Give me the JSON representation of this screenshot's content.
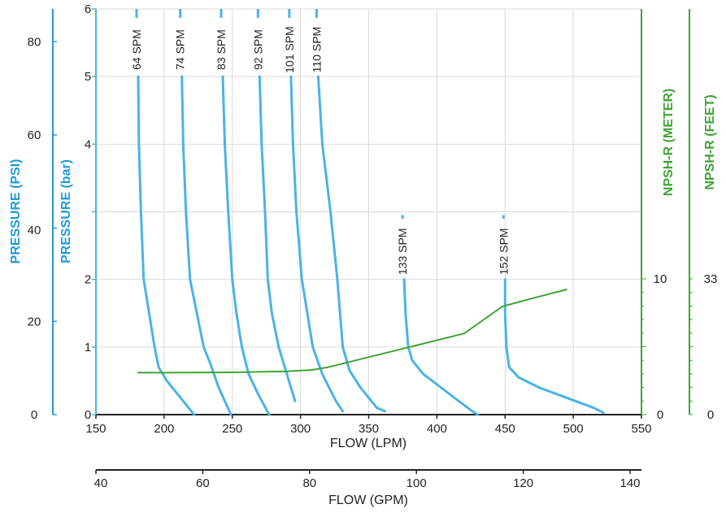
{
  "chart_data": {
    "type": "line",
    "title": "",
    "xlabel": "FLOW (LPM)",
    "x2label": "FLOW (GPM)",
    "ylabel_bar": "PRESSURE (bar)",
    "ylabel_psi": "PRESSURE (PSI)",
    "ylabel_npsh_m": "NPSH-R (METER)",
    "ylabel_npsh_ft": "NPSH-R (FEET)",
    "xlim": [
      150,
      550
    ],
    "ylim": [
      0,
      6
    ],
    "grid": true,
    "x_ticks": [
      "150",
      "200",
      "250",
      "300",
      "350",
      "400",
      "450",
      "500",
      "550"
    ],
    "gpm_ticks": [
      "40",
      "60",
      "80",
      "100",
      "120",
      "140"
    ],
    "bar_ticks": [
      "0",
      "1",
      "2",
      "",
      "4",
      "5",
      "6"
    ],
    "psi_ticks": [
      "0",
      "20",
      "",
      "60",
      "80"
    ],
    "psi_tick_40": "40",
    "npsh_m_ticks": [
      "0",
      "10"
    ],
    "npsh_ft_ticks": [
      "0",
      "33"
    ],
    "colors": {
      "pressure": "#4ab3e6",
      "npsh": "#3fa435",
      "axis_psi": "#1e9ad6",
      "grid": "#d9d9d9"
    },
    "series": [
      {
        "name": "64 SPM",
        "kind": "pressure",
        "x": [
          181,
          181.5,
          183,
          185,
          189,
          193,
          196,
          202,
          212,
          222
        ],
        "y": [
          5.0,
          4.0,
          3.0,
          2.0,
          1.5,
          1.0,
          0.7,
          0.5,
          0.25,
          0
        ]
      },
      {
        "name": "74 SPM",
        "kind": "pressure",
        "x": [
          213,
          214,
          216,
          219,
          224,
          229,
          234,
          240,
          249
        ],
        "y": [
          5.0,
          4.0,
          3.0,
          2.0,
          1.5,
          1.0,
          0.75,
          0.4,
          0
        ]
      },
      {
        "name": "83 SPM",
        "kind": "pressure",
        "x": [
          243,
          244.5,
          247,
          250,
          253,
          257,
          262,
          269,
          277
        ],
        "y": [
          5.0,
          4.0,
          3.0,
          2.0,
          1.5,
          1.0,
          0.6,
          0.3,
          0
        ]
      },
      {
        "name": "92 SPM",
        "kind": "pressure",
        "x": [
          270,
          271.5,
          274,
          276,
          279,
          284,
          290,
          296
        ],
        "y": [
          5.0,
          4.0,
          3.0,
          2.0,
          1.5,
          1.0,
          0.6,
          0.2
        ]
      },
      {
        "name": "101 SPM",
        "kind": "pressure",
        "x": [
          293,
          294.5,
          297,
          301,
          305,
          309,
          316,
          326,
          331
        ],
        "y": [
          5.0,
          4.0,
          3.0,
          2.0,
          1.5,
          1.0,
          0.6,
          0.2,
          0.05
        ]
      },
      {
        "name": "110 SPM",
        "kind": "pressure",
        "x": [
          313,
          316,
          322,
          327,
          329,
          331,
          336,
          344,
          356,
          362
        ],
        "y": [
          5.0,
          4.0,
          3.0,
          2.0,
          1.5,
          1.0,
          0.65,
          0.4,
          0.1,
          0.05
        ]
      },
      {
        "name": "133 SPM",
        "kind": "pressure",
        "x": [
          376,
          377,
          379,
          382,
          390,
          403,
          416,
          426,
          430
        ],
        "y": [
          2.0,
          1.5,
          1.0,
          0.8,
          0.6,
          0.4,
          0.2,
          0.05,
          0
        ]
      },
      {
        "name": "152 SPM",
        "kind": "pressure",
        "x": [
          450,
          450,
          451,
          453,
          460,
          475,
          495,
          515,
          522
        ],
        "y": [
          2.0,
          1.5,
          1.0,
          0.7,
          0.55,
          0.4,
          0.25,
          0.1,
          0.03
        ]
      },
      {
        "name": "NPSH-R",
        "kind": "npsh",
        "x": [
          181,
          200,
          250,
          290,
          308,
          320,
          340,
          380,
          420,
          448,
          470,
          495
        ],
        "y": [
          0.62,
          0.62,
          0.625,
          0.64,
          0.66,
          0.7,
          0.8,
          1.0,
          1.2,
          1.6,
          1.72,
          1.85
        ]
      }
    ]
  }
}
